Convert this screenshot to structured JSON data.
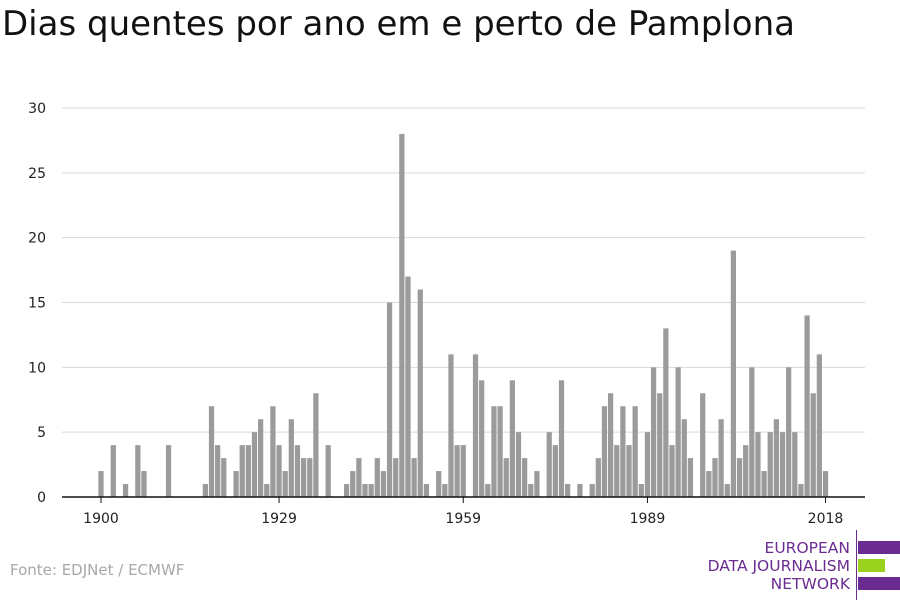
{
  "title": "Dias quentes por ano em e perto de Pamplona",
  "source": "Fonte: EDJNet / ECMWF",
  "logo": {
    "line1": "EUROPEAN",
    "line2": "DATA JOURNALISM",
    "line3": "NETWORK",
    "colors": {
      "purple": "#6b2c91",
      "green": "#9ad21e"
    }
  },
  "colors": {
    "bar": "#9b9b9b",
    "grid": "#d9d9d9",
    "axis": "#111111"
  },
  "chart_data": {
    "type": "bar",
    "title": "Dias quentes por ano em e perto de Pamplona",
    "xlabel": "",
    "ylabel": "",
    "ylim": [
      0,
      30
    ],
    "yticks": [
      0,
      5,
      10,
      15,
      20,
      25,
      30
    ],
    "xticks": [
      1900,
      1929,
      1959,
      1989,
      2018
    ],
    "grid": true,
    "legend": "none",
    "x": [
      1900,
      1901,
      1902,
      1903,
      1904,
      1905,
      1906,
      1907,
      1908,
      1909,
      1910,
      1911,
      1912,
      1913,
      1914,
      1915,
      1916,
      1917,
      1918,
      1919,
      1920,
      1921,
      1922,
      1923,
      1924,
      1925,
      1926,
      1927,
      1928,
      1929,
      1930,
      1931,
      1932,
      1933,
      1934,
      1935,
      1936,
      1937,
      1938,
      1939,
      1940,
      1941,
      1942,
      1943,
      1944,
      1945,
      1946,
      1947,
      1948,
      1949,
      1950,
      1951,
      1952,
      1953,
      1954,
      1955,
      1956,
      1957,
      1958,
      1959,
      1960,
      1961,
      1962,
      1963,
      1964,
      1965,
      1966,
      1967,
      1968,
      1969,
      1970,
      1971,
      1972,
      1973,
      1974,
      1975,
      1976,
      1977,
      1978,
      1979,
      1980,
      1981,
      1982,
      1983,
      1984,
      1985,
      1986,
      1987,
      1988,
      1989,
      1990,
      1991,
      1992,
      1993,
      1994,
      1995,
      1996,
      1997,
      1998,
      1999,
      2000,
      2001,
      2002,
      2003,
      2004,
      2005,
      2006,
      2007,
      2008,
      2009,
      2010,
      2011,
      2012,
      2013,
      2014,
      2015,
      2016,
      2017,
      2018
    ],
    "values": [
      2,
      0,
      4,
      0,
      1,
      0,
      4,
      2,
      0,
      0,
      0,
      4,
      0,
      0,
      0,
      0,
      0,
      1,
      7,
      4,
      3,
      0,
      2,
      4,
      4,
      5,
      6,
      1,
      7,
      4,
      2,
      6,
      4,
      3,
      3,
      8,
      0,
      4,
      0,
      0,
      1,
      2,
      3,
      1,
      1,
      3,
      2,
      15,
      3,
      28,
      17,
      3,
      16,
      1,
      0,
      2,
      1,
      11,
      4,
      4,
      0,
      11,
      9,
      1,
      7,
      7,
      3,
      9,
      5,
      3,
      1,
      2,
      0,
      5,
      4,
      9,
      1,
      0,
      1,
      0,
      1,
      3,
      7,
      8,
      4,
      7,
      4,
      7,
      1,
      5,
      10,
      8,
      13,
      4,
      10,
      6,
      3,
      0,
      8,
      2,
      3,
      6,
      1,
      19,
      3,
      4,
      10,
      5,
      2,
      5,
      6,
      5,
      10,
      5,
      1,
      14,
      8,
      11,
      2
    ]
  }
}
